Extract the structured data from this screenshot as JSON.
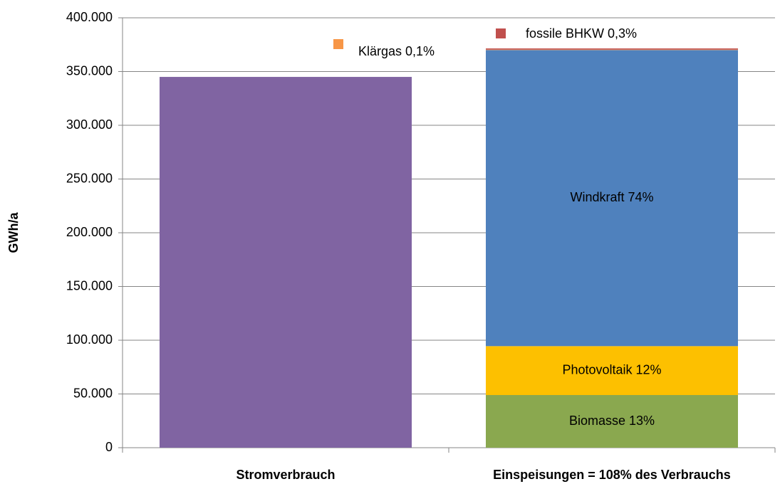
{
  "chart_data": {
    "type": "stacked_bar",
    "y_label": "GWh/a",
    "categories": [
      "Stromverbrauch",
      "Einspeisungen = 108% des Verbrauchs"
    ],
    "series": [
      {
        "name": "Stromverbrauch",
        "color": "#8064a2",
        "values": [
          345000,
          null
        ]
      },
      {
        "name": "Biomasse",
        "color": "#8aa84f",
        "values": [
          null,
          49000
        ],
        "value_labels": [
          null,
          "Biomasse 13%"
        ]
      },
      {
        "name": "Photovoltaik",
        "color": "#fdc000",
        "values": [
          null,
          45500
        ],
        "value_labels": [
          null,
          "Photovoltaik 12%"
        ]
      },
      {
        "name": "Windkraft",
        "color": "#4f81bd",
        "values": [
          null,
          275500
        ],
        "value_labels": [
          null,
          "Windkraft 74%"
        ]
      },
      {
        "name": "Klärgas",
        "color": "#f79646",
        "values": [
          null,
          400
        ],
        "value_labels": [
          null,
          "Klärgas 0,1%"
        ]
      },
      {
        "name": "fossile BHKW",
        "color": "#c0504d",
        "values": [
          null,
          1100
        ],
        "value_labels": [
          null,
          "fossile BHKW 0,3%"
        ]
      }
    ],
    "ylim": [
      0,
      400000
    ],
    "yticks": [
      0,
      {
        "value": 50000,
        "label": "50.000"
      },
      {
        "value": 100000,
        "label": "100.000"
      },
      {
        "value": 150000,
        "label": "150.000"
      },
      {
        "value": 200000,
        "label": "200.000"
      },
      {
        "value": 250000,
        "label": "250.000"
      },
      {
        "value": 300000,
        "label": "300.000"
      },
      {
        "value": 350000,
        "label": "350.000"
      },
      {
        "value": 400000,
        "label": "400.000"
      }
    ],
    "grid": true
  }
}
